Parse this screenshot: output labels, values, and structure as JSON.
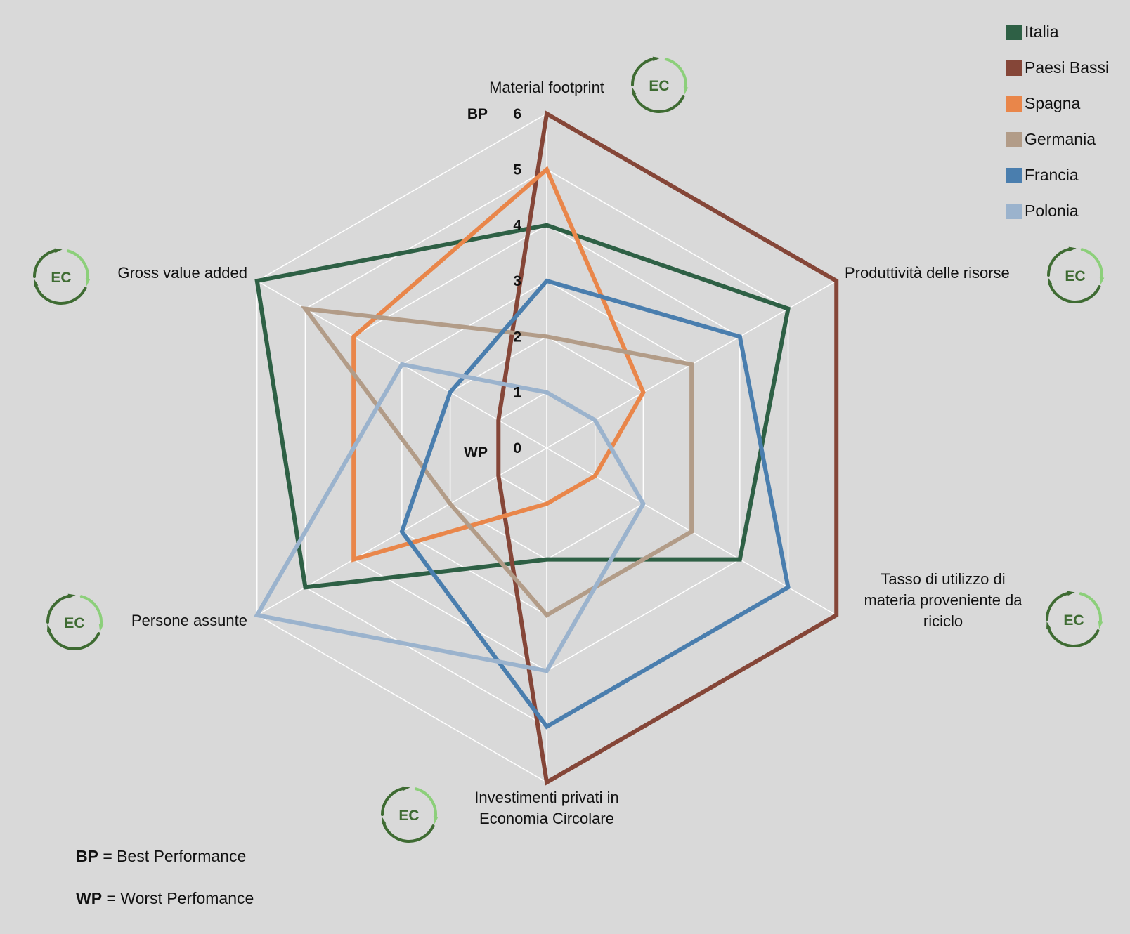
{
  "chart_data": {
    "type": "radar",
    "title": "",
    "axes": [
      {
        "label_lines": [
          "Material footprint"
        ]
      },
      {
        "label_lines": [
          "Produttività delle risorse"
        ]
      },
      {
        "label_lines": [
          "Tasso di utilizzo di",
          "materia proveniente da",
          "riciclo"
        ]
      },
      {
        "label_lines": [
          "Investimenti privati in",
          "Economia Circolare"
        ]
      },
      {
        "label_lines": [
          "Persone assunte"
        ]
      },
      {
        "label_lines": [
          "Gross value added"
        ]
      }
    ],
    "rlim": [
      0,
      6
    ],
    "ticks": [
      "0",
      "1",
      "2",
      "3",
      "4",
      "5",
      "6"
    ],
    "best_marker": "BP",
    "worst_marker": "WP",
    "axis_badge": "EC",
    "grid": true,
    "legend_position": "top-right",
    "series": [
      {
        "name": "Italia",
        "color": "#2e6045",
        "values": [
          4,
          5,
          4,
          2,
          5,
          6
        ]
      },
      {
        "name": "Paesi Bassi",
        "color": "#854638",
        "values": [
          6,
          6,
          6,
          6,
          1,
          1
        ]
      },
      {
        "name": "Spagna",
        "color": "#e9864a",
        "values": [
          5,
          2,
          1,
          1,
          4,
          4
        ]
      },
      {
        "name": "Germania",
        "color": "#b29c88",
        "values": [
          2,
          3,
          3,
          3,
          2,
          5
        ]
      },
      {
        "name": "Francia",
        "color": "#4a7eae",
        "values": [
          3,
          4,
          5,
          5,
          3,
          2
        ]
      },
      {
        "name": "Polonia",
        "color": "#9bb3cd",
        "values": [
          1,
          1,
          2,
          4,
          6,
          3
        ]
      }
    ]
  },
  "notes": [
    {
      "abbr": "BP",
      "text": " = Best Performance"
    },
    {
      "abbr": "WP",
      "text": " = Worst Perfomance"
    }
  ]
}
